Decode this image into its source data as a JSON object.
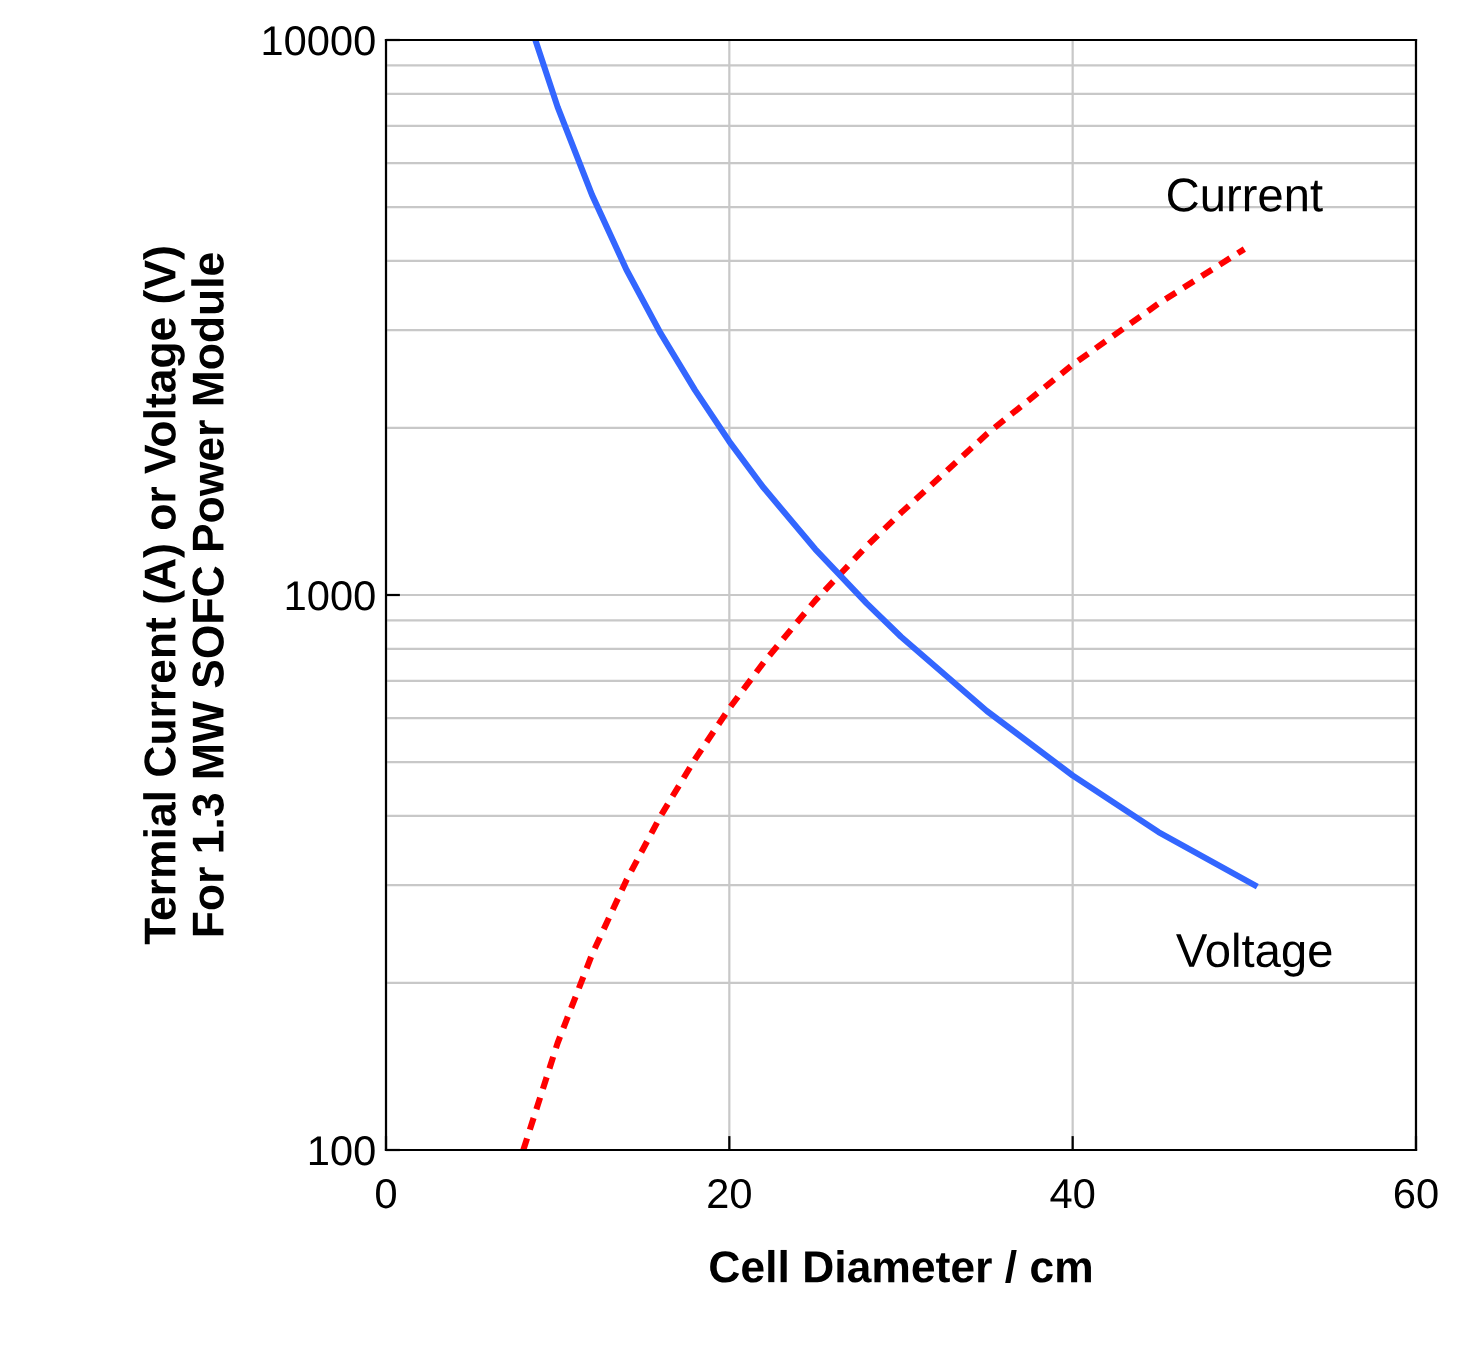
{
  "chart_data": {
    "type": "line",
    "xlabel": "Cell Diameter / cm",
    "ylabel": "Termial Current (A) or Voltage (V)\nFor 1.3 MW SOFC Power Module",
    "log": "y",
    "xlim": [
      0,
      60
    ],
    "ylim": [
      100,
      10000
    ],
    "xticks": [
      0,
      20,
      40,
      60
    ],
    "yticks": [
      100,
      1000,
      10000
    ],
    "grid": true,
    "legend": false,
    "series": [
      {
        "name": "Current",
        "color": "#ff0000",
        "line_style": "dashed",
        "x": [
          8,
          10,
          12,
          14,
          16,
          18,
          20,
          22,
          25,
          28,
          30,
          35,
          40,
          45,
          50
        ],
        "values": [
          100,
          156,
          225,
          306,
          400,
          506,
          625,
          756,
          977,
          1225,
          1406,
          1950,
          2600,
          3350,
          4200
        ]
      },
      {
        "name": "Voltage",
        "color": "#3366ff",
        "line_style": "solid",
        "x": [
          8.7,
          10,
          12,
          14,
          16,
          18,
          20,
          22,
          25,
          28,
          30,
          35,
          40,
          45,
          50.6
        ],
        "values": [
          10000,
          7570,
          5260,
          3860,
          2960,
          2340,
          1890,
          1560,
          1210,
          966,
          841,
          618,
          473,
          374,
          300
        ]
      }
    ]
  }
}
